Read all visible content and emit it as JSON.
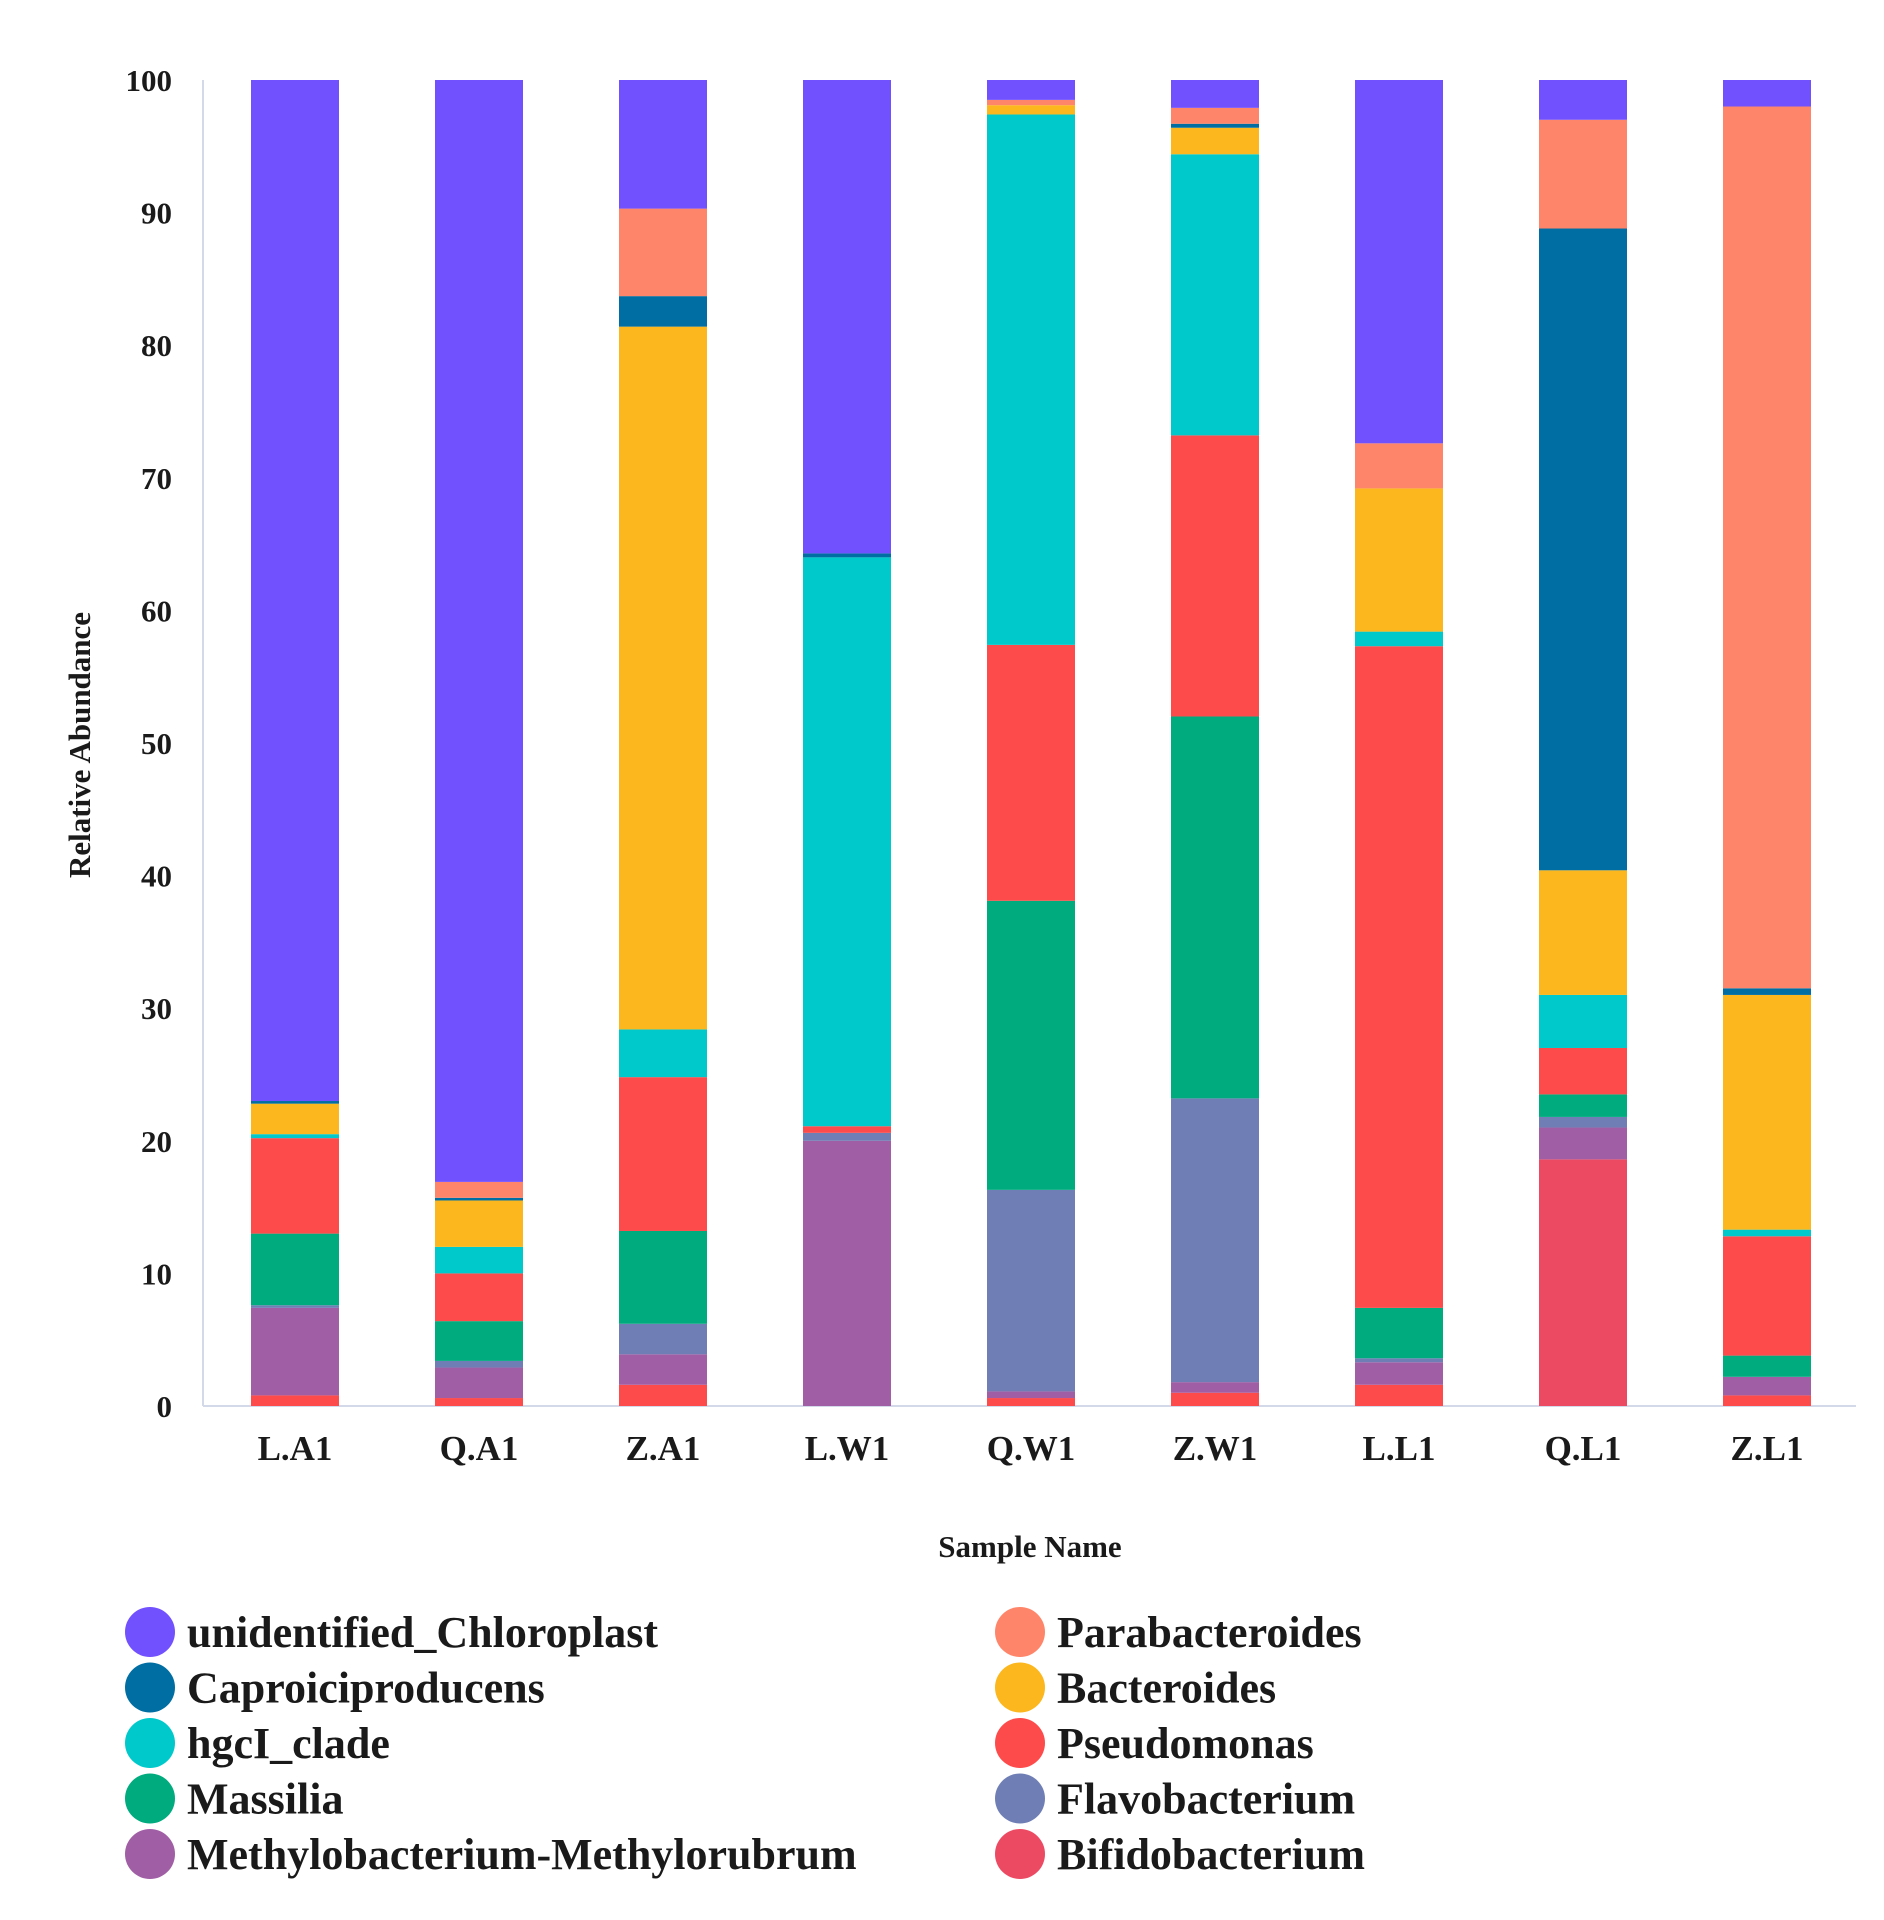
{
  "chart_data": {
    "type": "bar",
    "stacked": true,
    "title": "",
    "xlabel": "Sample Name",
    "ylabel": "Relative Abundance",
    "ylim": [
      0,
      100
    ],
    "yticks": [
      0,
      10,
      20,
      30,
      40,
      50,
      60,
      70,
      80,
      90,
      100
    ],
    "categories": [
      "L.A1",
      "Q.A1",
      "Z.A1",
      "L.W1",
      "Q.W1",
      "Z.W1",
      "L.L1",
      "Q.L1",
      "Z.L1"
    ],
    "series": [
      {
        "name": "Bifidobacterium",
        "color": "#ec4a63",
        "values": [
          0.0,
          0.0,
          0.0,
          0.0,
          0.0,
          0.0,
          0.0,
          18.6,
          0.0
        ]
      },
      {
        "name": "Pseudomonas",
        "color": "#fd4b4b",
        "values": [
          0.8,
          0.6,
          1.6,
          0.0,
          0.6,
          1.0,
          1.6,
          0.0,
          0.8
        ]
      },
      {
        "name": "Methylobacterium-Methylorubrum",
        "color": "#a05ea5",
        "values": [
          6.6,
          2.3,
          2.3,
          20.0,
          0.5,
          0.8,
          1.7,
          2.4,
          1.4
        ]
      },
      {
        "name": "Flavobacterium",
        "color": "#6f7fb5",
        "values": [
          0.2,
          0.5,
          2.3,
          0.6,
          15.2,
          21.4,
          0.3,
          0.8,
          0.0
        ]
      },
      {
        "name": "Massilia",
        "color": "#00ab7e",
        "values": [
          5.4,
          3.0,
          7.0,
          0.0,
          21.8,
          28.8,
          3.8,
          1.7,
          1.6
        ]
      },
      {
        "name": "Pseudomonas",
        "color": "#fd4b4b",
        "values": [
          7.2,
          3.6,
          11.6,
          0.5,
          19.3,
          21.2,
          49.9,
          3.5,
          9.0
        ]
      },
      {
        "name": "hgcI_clade",
        "color": "#00c9cc",
        "values": [
          0.3,
          2.0,
          3.6,
          42.9,
          40.0,
          21.2,
          1.1,
          4.0,
          0.5
        ]
      },
      {
        "name": "Bacteroides",
        "color": "#fbb71d",
        "values": [
          2.3,
          3.5,
          53.0,
          0.0,
          0.7,
          2.0,
          10.8,
          9.4,
          17.7
        ]
      },
      {
        "name": "Caproiciproducens",
        "color": "#006ea2",
        "values": [
          0.2,
          0.2,
          2.3,
          0.3,
          0.0,
          0.3,
          0.0,
          48.4,
          0.5
        ]
      },
      {
        "name": "Parabacteroides",
        "color": "#fe8569",
        "values": [
          0.0,
          1.2,
          6.6,
          0.0,
          0.4,
          1.2,
          3.4,
          8.2,
          66.5
        ]
      },
      {
        "name": "unidentified_Chloroplast",
        "color": "#7150fe",
        "values": [
          77.0,
          83.1,
          9.7,
          35.7,
          1.5,
          2.1,
          27.4,
          3.0,
          2.0
        ]
      }
    ],
    "legend": {
      "placement": "bottom",
      "entries": [
        {
          "label": "unidentified_Chloroplast",
          "color": "#7150fe"
        },
        {
          "label": "Parabacteroides",
          "color": "#fe8569"
        },
        {
          "label": "Caproiciproducens",
          "color": "#006ea2"
        },
        {
          "label": "Bacteroides",
          "color": "#fbb71d"
        },
        {
          "label": "hgcI_clade",
          "color": "#00c9cc"
        },
        {
          "label": "Pseudomonas",
          "color": "#fd4b4b"
        },
        {
          "label": "Massilia",
          "color": "#00ab7e"
        },
        {
          "label": "Flavobacterium",
          "color": "#6f7fb5"
        },
        {
          "label": "Methylobacterium-Methylorubrum",
          "color": "#a05ea5"
        },
        {
          "label": "Bifidobacterium",
          "color": "#ec4a63"
        }
      ]
    },
    "grid": false
  }
}
